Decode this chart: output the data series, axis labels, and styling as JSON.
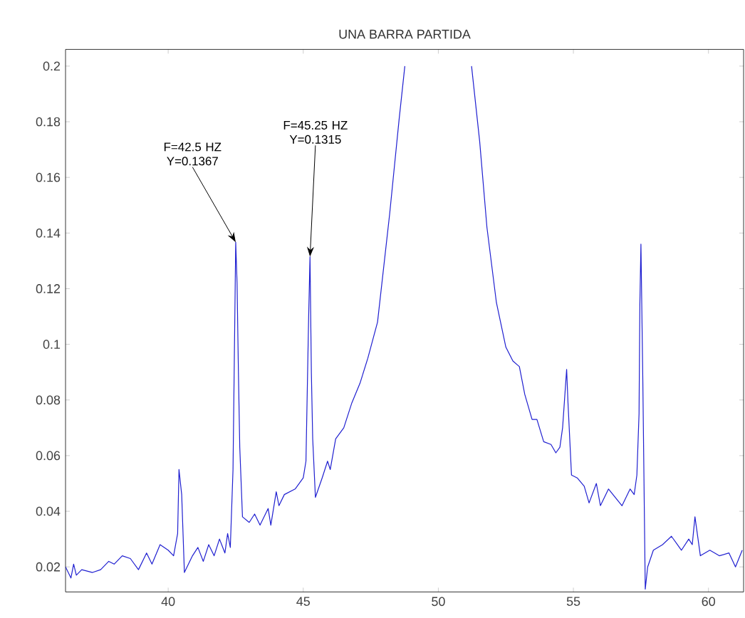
{
  "chart_data": {
    "type": "line",
    "title": "UNA BARRA PARTIDA",
    "xlim": [
      36.2,
      61.3
    ],
    "ylim": [
      0.011,
      0.206
    ],
    "xticks": [
      40,
      45,
      50,
      55,
      60
    ],
    "yticks": [
      0.02,
      0.04,
      0.06,
      0.08,
      0.1,
      0.12,
      0.14,
      0.16,
      0.18,
      0.2
    ],
    "grid": false,
    "marker": "none",
    "line_style": "solid",
    "annotations": [
      {
        "text": "F=42.5 HZ Y=0.1367",
        "x": 42.5,
        "y": 0.1367
      },
      {
        "text": "F=45.25 HZ Y=0.1315",
        "x": 45.25,
        "y": 0.1315
      }
    ],
    "series": [
      {
        "color": "#1f1fd0",
        "x": [
          36.2,
          36.4,
          36.5,
          36.6,
          36.8,
          37.2,
          37.5,
          37.8,
          38.0,
          38.3,
          38.6,
          38.9,
          39.2,
          39.4,
          39.7,
          40.0,
          40.2,
          40.35,
          40.4,
          40.5,
          40.6,
          40.9,
          41.1,
          41.3,
          41.5,
          41.7,
          41.9,
          42.1,
          42.2,
          42.3,
          42.4,
          42.5,
          42.55,
          42.6,
          42.65,
          42.75,
          43.0,
          43.2,
          43.4,
          43.7,
          43.8,
          44.0,
          44.1,
          44.3,
          44.7,
          45.0,
          45.1,
          45.2,
          45.25,
          45.3,
          45.35,
          45.45,
          45.7,
          45.9,
          46.0,
          46.2,
          46.5,
          46.8,
          47.1,
          47.39,
          47.75,
          48.2,
          48.55,
          48.76,
          50.0,
          51.23,
          51.53,
          51.8,
          52.15,
          52.5,
          52.76,
          53.0,
          53.2,
          53.47,
          53.65,
          53.9,
          54.17,
          54.35,
          54.5,
          54.6,
          54.75,
          54.8,
          54.93,
          55.14,
          55.4,
          55.58,
          55.85,
          56.0,
          56.3,
          56.55,
          56.8,
          57.1,
          57.25,
          57.35,
          57.43,
          57.46,
          57.5,
          57.57,
          57.66,
          57.75,
          57.96,
          58.3,
          58.63,
          59.0,
          59.27,
          59.4,
          59.5,
          59.7,
          60.05,
          60.4,
          60.76,
          61.0,
          61.25
        ],
        "values": [
          0.02,
          0.016,
          0.021,
          0.017,
          0.019,
          0.018,
          0.019,
          0.022,
          0.021,
          0.024,
          0.023,
          0.019,
          0.025,
          0.021,
          0.028,
          0.026,
          0.024,
          0.032,
          0.055,
          0.046,
          0.018,
          0.024,
          0.027,
          0.022,
          0.028,
          0.024,
          0.03,
          0.025,
          0.032,
          0.027,
          0.055,
          0.1367,
          0.122,
          0.09,
          0.063,
          0.038,
          0.036,
          0.039,
          0.035,
          0.041,
          0.035,
          0.047,
          0.042,
          0.046,
          0.048,
          0.052,
          0.058,
          0.11,
          0.1315,
          0.09,
          0.066,
          0.045,
          0.052,
          0.058,
          0.055,
          0.066,
          0.07,
          0.079,
          0.086,
          0.095,
          0.108,
          0.147,
          0.181,
          0.2,
          null,
          0.2,
          0.173,
          0.142,
          0.115,
          0.099,
          0.094,
          0.092,
          0.082,
          0.073,
          0.073,
          0.065,
          0.064,
          0.061,
          0.063,
          0.07,
          0.091,
          0.079,
          0.053,
          0.052,
          0.049,
          0.043,
          0.05,
          0.042,
          0.048,
          0.045,
          0.042,
          0.048,
          0.046,
          0.053,
          0.075,
          0.114,
          0.136,
          0.087,
          0.012,
          0.02,
          0.026,
          0.028,
          0.031,
          0.026,
          0.03,
          0.028,
          0.038,
          0.024,
          0.026,
          0.024,
          0.025,
          0.02,
          0.026
        ]
      }
    ]
  }
}
